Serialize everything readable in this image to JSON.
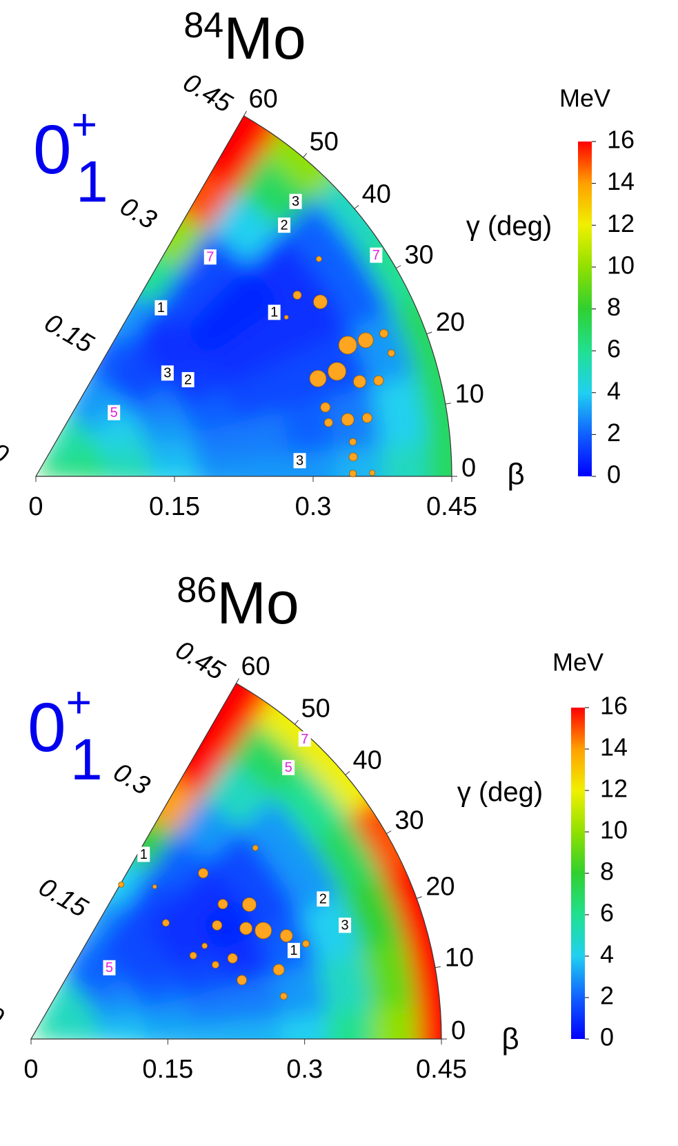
{
  "chart_data": [
    {
      "type": "polarheatmap",
      "title": {
        "mass": "84",
        "element": "Mo"
      },
      "state": {
        "base": "0",
        "sub": "1",
        "sup": "+"
      },
      "x_label": "β",
      "y_label": "γ (deg)",
      "colorbar_label": "MeV",
      "xlim": [
        0,
        0.45
      ],
      "xticks": [
        0,
        0.15,
        0.3,
        0.45
      ],
      "ylim": [
        0,
        60
      ],
      "yticks": [
        0,
        10,
        20,
        30,
        40,
        50,
        60
      ],
      "zlim": [
        0,
        16
      ],
      "zticks": [
        0,
        2,
        4,
        6,
        8,
        10,
        12,
        14,
        16
      ],
      "colors": [
        "#0000ff",
        "#1060ff",
        "#20d0f0",
        "#20e090",
        "#30d030",
        "#90e000",
        "#f0f000",
        "#ffa000",
        "#ff0000"
      ],
      "grid_beta": [
        0,
        0.05,
        0.1,
        0.15,
        0.2,
        0.25,
        0.3,
        0.35,
        0.4,
        0.45
      ],
      "grid_gamma": [
        0,
        10,
        20,
        30,
        40,
        50,
        60
      ],
      "energy": [
        [
          7,
          7,
          7,
          7,
          7,
          7,
          7
        ],
        [
          6.5,
          6.5,
          6,
          6,
          5.5,
          5.5,
          5.5
        ],
        [
          5.5,
          5,
          4.5,
          4,
          3.5,
          3,
          3
        ],
        [
          4,
          3.5,
          3,
          2.5,
          1.5,
          1.5,
          2
        ],
        [
          3,
          2.5,
          2,
          1.2,
          1,
          1,
          3
        ],
        [
          3,
          2.5,
          1.5,
          1,
          0.8,
          1.5,
          6
        ],
        [
          3,
          2,
          1.5,
          1,
          0.8,
          1.5,
          10
        ],
        [
          3.5,
          2.5,
          1.5,
          1,
          1,
          4,
          15
        ],
        [
          5,
          4,
          3,
          2,
          2,
          7,
          16
        ],
        [
          7,
          7,
          7,
          6,
          5,
          10,
          16
        ]
      ],
      "contour_labels": [
        {
          "text": "3",
          "beta": 0.409,
          "gamma": 46.6,
          "color": "#000000"
        },
        {
          "text": "2",
          "beta": 0.382,
          "gamma": 45.3,
          "color": "#000000"
        },
        {
          "text": "7",
          "beta": 0.303,
          "gamma": 51.5,
          "color": "#e020e0"
        },
        {
          "text": "7",
          "beta": 0.439,
          "gamma": 33.0,
          "color": "#e020e0"
        },
        {
          "text": "1",
          "beta": 0.227,
          "gamma": 53.4,
          "color": "#000000"
        },
        {
          "text": "1",
          "beta": 0.313,
          "gamma": 34.5,
          "color": "#000000"
        },
        {
          "text": "3",
          "beta": 0.181,
          "gamma": 38.1,
          "color": "#000000"
        },
        {
          "text": "2",
          "beta": 0.195,
          "gamma": 32.4,
          "color": "#000000"
        },
        {
          "text": "5",
          "beta": 0.109,
          "gamma": 39.2,
          "color": "#e020e0"
        },
        {
          "text": "3",
          "beta": 0.286,
          "gamma": 3.4,
          "color": "#000000"
        }
      ],
      "point_color": "#ffa520",
      "points": {
        "beta": [
          0.386,
          0.361,
          0.344,
          0.366,
          0.386,
          0.407,
          0.407,
          0.345,
          0.323,
          0.365,
          0.385,
          0.322,
          0.343,
          0.364,
          0.322,
          0.345,
          0.344,
          0.343,
          0.364,
          0.321
        ],
        "gamma": [
          37.5,
          31.5,
          34.7,
          22.8,
          22.4,
          22.3,
          19.1,
          19.2,
          19.1,
          16.3,
          15.6,
          13.4,
          10.3,
          10.0,
          10.4,
          6.2,
          3.5,
          0.5,
          0.6,
          32.4
        ],
        "size": [
          4,
          10,
          6,
          13,
          11,
          6,
          5,
          13,
          12,
          9,
          7,
          7,
          9,
          7,
          6,
          5,
          6,
          5,
          4,
          3
        ]
      }
    },
    {
      "type": "polarheatmap",
      "title": {
        "mass": "86",
        "element": "Mo"
      },
      "state": {
        "base": "0",
        "sub": "1",
        "sup": "+"
      },
      "x_label": "β",
      "y_label": "γ (deg)",
      "colorbar_label": "MeV",
      "xlim": [
        0,
        0.45
      ],
      "xticks": [
        0,
        0.15,
        0.3,
        0.45
      ],
      "ylim": [
        0,
        60
      ],
      "yticks": [
        0,
        10,
        20,
        30,
        40,
        50,
        60
      ],
      "zlim": [
        0,
        16
      ],
      "zticks": [
        0,
        2,
        4,
        6,
        8,
        10,
        12,
        14,
        16
      ],
      "colors": [
        "#0000ff",
        "#1060ff",
        "#20d0f0",
        "#20e090",
        "#30d030",
        "#90e000",
        "#f0f000",
        "#ffa000",
        "#ff0000"
      ],
      "grid_beta": [
        0,
        0.05,
        0.1,
        0.15,
        0.2,
        0.25,
        0.3,
        0.35,
        0.4,
        0.45
      ],
      "grid_gamma": [
        0,
        10,
        20,
        30,
        40,
        50,
        60
      ],
      "energy": [
        [
          6,
          6,
          6,
          6,
          6,
          6,
          6
        ],
        [
          5,
          5,
          5,
          5,
          5,
          5,
          5
        ],
        [
          4,
          3.5,
          3,
          2.5,
          2,
          2,
          2.5
        ],
        [
          3.5,
          3,
          2,
          1.5,
          1.5,
          1.5,
          3
        ],
        [
          3.5,
          2.5,
          1.5,
          1,
          1,
          1.5,
          4
        ],
        [
          3.5,
          2.5,
          1,
          0.8,
          1,
          2,
          8
        ],
        [
          4,
          3,
          2,
          1.5,
          1.5,
          3,
          14
        ],
        [
          6,
          5,
          4,
          3,
          3,
          5,
          16
        ],
        [
          10,
          9,
          8,
          7,
          6,
          7,
          16
        ],
        [
          16,
          16,
          16,
          15,
          12,
          12,
          16
        ]
      ],
      "contour_labels": [
        {
          "text": "7",
          "beta": 0.445,
          "gamma": 47.6,
          "color": "#e020e0"
        },
        {
          "text": "5",
          "beta": 0.41,
          "gamma": 46.5,
          "color": "#e020e0"
        },
        {
          "text": "1",
          "beta": 0.237,
          "gamma": 58.6,
          "color": "#000000"
        },
        {
          "text": "2",
          "beta": 0.355,
          "gamma": 25.6,
          "color": "#000000"
        },
        {
          "text": "3",
          "beta": 0.366,
          "gamma": 19.9,
          "color": "#000000"
        },
        {
          "text": "1",
          "beta": 0.304,
          "gamma": 18.6,
          "color": "#000000"
        },
        {
          "text": "5",
          "beta": 0.116,
          "gamma": 42.3,
          "color": "#e020e0"
        }
      ],
      "point_color": "#ffa520",
      "points": {
        "beta": [
          0.281,
          0.265,
          0.281,
          0.257,
          0.239,
          0.262,
          0.323,
          0.302,
          0.282,
          0.24,
          0.238,
          0.218,
          0.281,
          0.2,
          0.195,
          0.196,
          0.215,
          0.239,
          0.319,
          0.216
        ],
        "gamma": [
          31.6,
          27.2,
          25.0,
          35.1,
          31.4,
          43.9,
          40.4,
          22.0,
          15.6,
          15.6,
          21.8,
          21.9,
          9.6,
          27.2,
          40.7,
          59.7,
          50.9,
          59.6,
          19.1,
          28.2
        ],
        "size": [
          10,
          9,
          12,
          7,
          7,
          7,
          4,
          9,
          8,
          7,
          7,
          5,
          5,
          5,
          5,
          4,
          3,
          4,
          5,
          4
        ]
      }
    }
  ]
}
